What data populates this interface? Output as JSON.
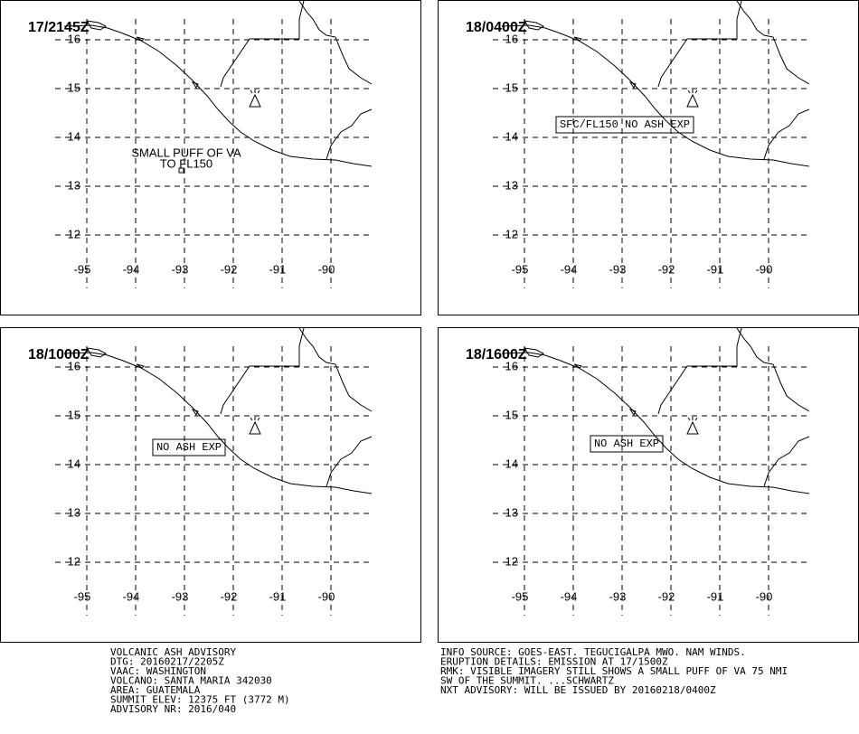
{
  "panels": [
    {
      "time": "17/2145Z",
      "annotation": [
        "SMALL PUFF OF VA",
        "TO FL150"
      ]
    },
    {
      "time": "18/0400Z",
      "annotation": [
        "SFC/FL150 NO ASH EXP"
      ]
    },
    {
      "time": "18/1000Z",
      "annotation": [
        "NO ASH EXP"
      ]
    },
    {
      "time": "18/1600Z",
      "annotation": [
        "NO ASH EXP"
      ]
    }
  ],
  "map": {
    "lat_ticks": [
      16,
      15,
      14,
      13,
      12
    ],
    "lon_ticks": [
      -95,
      -94,
      -93,
      -92,
      -91,
      -90
    ]
  },
  "advisory": {
    "left": [
      "VOLCANIC ASH ADVISORY",
      "DTG: 20160217/2205Z",
      "VAAC: WASHINGTON",
      "VOLCANO: SANTA MARIA 342030",
      "AREA: GUATEMALA",
      "SUMMIT ELEV: 12375 FT (3772 M)",
      "ADVISORY NR: 2016/040"
    ],
    "right": [
      "INFO SOURCE: GOES-EAST. TEGUCIGALPA MWO. NAM WINDS.",
      "ERUPTION DETAILS: EMISSION AT 17/1500Z",
      "RMK: VISIBLE IMAGERY STILL SHOWS A SMALL PUFF OF VA 75 NMI",
      "SW OF THE SUMMIT. ...SCHWARTZ",
      "NXT ADVISORY: WILL BE ISSUED BY 20160218/0400Z"
    ]
  }
}
